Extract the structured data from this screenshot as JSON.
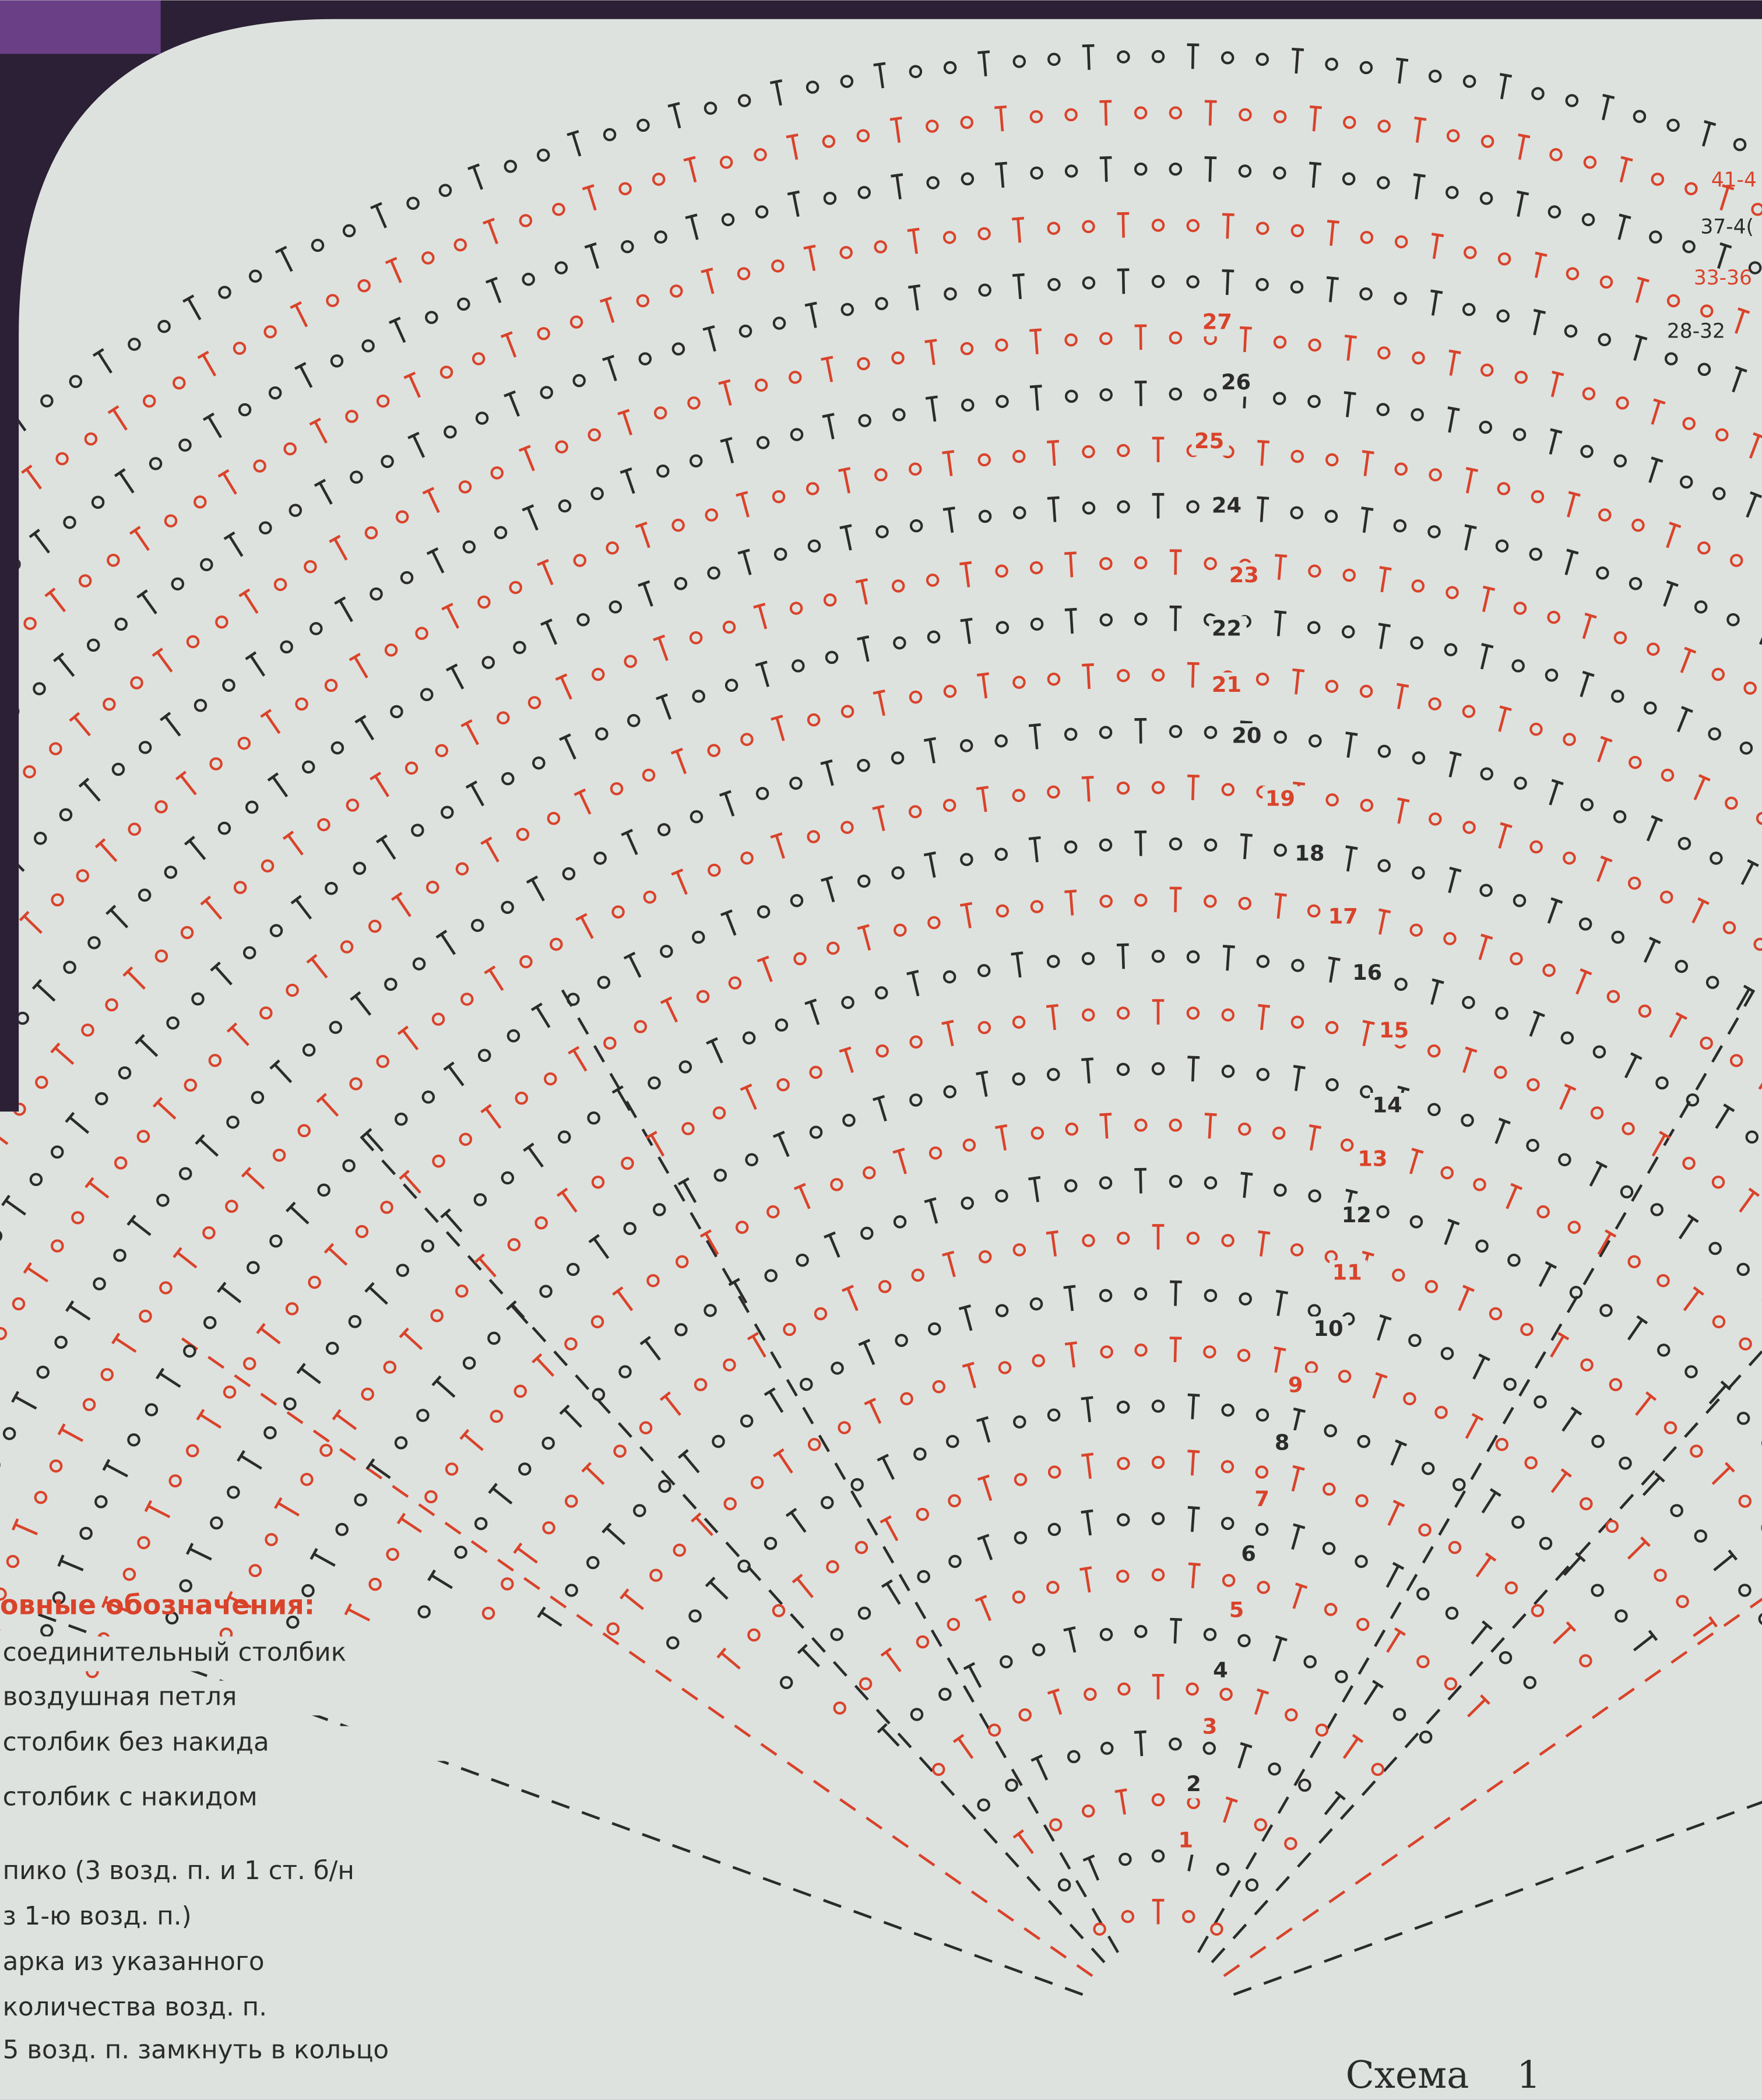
{
  "diagram": {
    "row_labels": [
      "1",
      "2",
      "3",
      "4",
      "5",
      "6",
      "7",
      "8",
      "9",
      "10",
      "11",
      "12",
      "13",
      "14",
      "15",
      "16",
      "17",
      "18",
      "19",
      "20",
      "21",
      "22",
      "23",
      "24",
      "25",
      "26",
      "27"
    ],
    "range_labels": [
      "41-4",
      "37-4(",
      "33-36",
      "28-32"
    ]
  },
  "legend": {
    "title": "овные обозначения:",
    "items": [
      "соединительный столбик",
      "воздушная петля",
      "столбик без накида",
      "столбик с накидом",
      "пико (3 возд. п. и 1 ст. б/н",
      "з 1-ю возд. п.)",
      "арка из указанного",
      "количества возд. п.",
      "5 возд. п. замкнуть в кольцо"
    ]
  },
  "caption": "Схема    1"
}
